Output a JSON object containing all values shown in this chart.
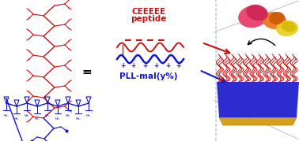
{
  "bg_color": "#ffffff",
  "red_color": "#cc1111",
  "blue_color": "#1515cc",
  "gold_color": "#d4a020",
  "box_edge_color": "#aabbcc",
  "pink1": "#e8406a",
  "pink2": "#cc2255",
  "orange1": "#e87820",
  "orange2": "#cc5500",
  "yellow1": "#e8d020",
  "yellow2": "#d4b800",
  "text_ceeeee": "CEEEEE",
  "text_peptide": "peptide",
  "text_pll": "PLL-mal(y%)",
  "figw": 3.78,
  "figh": 1.79,
  "dpi": 100
}
